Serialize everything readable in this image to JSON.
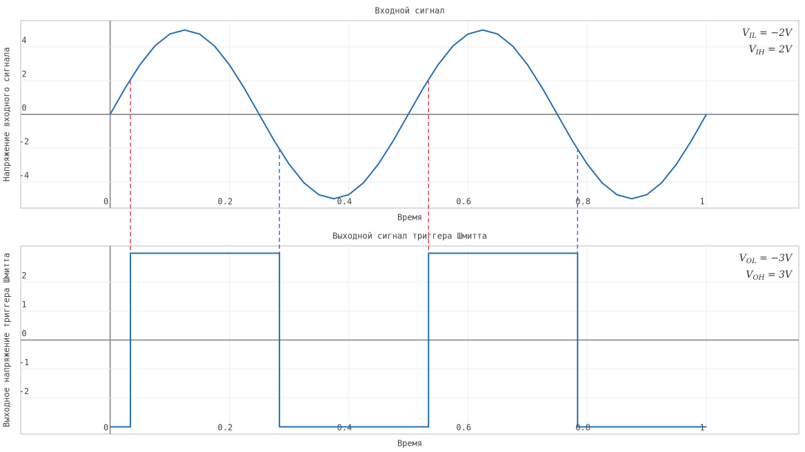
{
  "chart_data": [
    {
      "type": "line",
      "title": "Входной сигнал",
      "xlabel": "Время",
      "ylabel": "Напряжение входного сигнала",
      "x": [
        0,
        0.025,
        0.05,
        0.075,
        0.1,
        0.125,
        0.15,
        0.175,
        0.2,
        0.225,
        0.25,
        0.275,
        0.3,
        0.325,
        0.35,
        0.375,
        0.4,
        0.425,
        0.45,
        0.475,
        0.5,
        0.525,
        0.55,
        0.575,
        0.6,
        0.625,
        0.65,
        0.675,
        0.7,
        0.725,
        0.75,
        0.775,
        0.8,
        0.825,
        0.85,
        0.875,
        0.9,
        0.925,
        0.95,
        0.975,
        1
      ],
      "series": [
        {
          "color": "#1f6fb4",
          "values": [
            0,
            1.55,
            2.94,
            4.05,
            4.76,
            5,
            4.76,
            4.05,
            2.94,
            1.55,
            0,
            -1.55,
            -2.94,
            -4.05,
            -4.76,
            -5,
            -4.76,
            -4.05,
            -2.94,
            -1.55,
            0,
            1.55,
            2.94,
            4.05,
            4.76,
            5,
            4.76,
            4.05,
            2.94,
            1.55,
            0,
            -1.55,
            -2.94,
            -4.05,
            -4.76,
            -5,
            -4.76,
            -4.05,
            -2.94,
            -1.55,
            0
          ]
        }
      ],
      "xlim": [
        -0.15,
        1.155
      ],
      "ylim": [
        -5.55,
        5.55
      ],
      "xticks": [
        0,
        0.2,
        0.4,
        0.6,
        0.8,
        1
      ],
      "yticks": [
        -4,
        -2,
        0,
        2,
        4
      ],
      "grid": true,
      "vlines": [
        {
          "x": 0.034,
          "y": 2,
          "y2": 3,
          "color": "#ef4444"
        },
        {
          "x": 0.284,
          "y": -2,
          "y2": 3,
          "color": "#5b5bd6"
        },
        {
          "x": 0.534,
          "y": 2,
          "y2": 3,
          "color": "#ef4444"
        },
        {
          "x": 0.784,
          "y": -2,
          "y2": 3,
          "color": "#5b5bd6"
        }
      ],
      "annotations": [
        [
          {
            "text": "V"
          },
          {
            "text": "IL",
            "sub": true
          },
          {
            "text": " = −2V"
          }
        ],
        [
          {
            "text": "V"
          },
          {
            "text": "IH",
            "sub": true
          },
          {
            "text": " = 2V"
          }
        ]
      ]
    },
    {
      "type": "step",
      "title": "Выходной сигнал триггера Шмитта",
      "xlabel": "Время",
      "ylabel": "Выходное напряжение триггера Шмитта",
      "x": [
        0,
        0.034,
        0.034,
        0.284,
        0.284,
        0.534,
        0.534,
        0.784,
        0.784,
        1
      ],
      "series": [
        {
          "color": "#1f6fb4",
          "values": [
            -3,
            -3,
            3,
            3,
            -3,
            -3,
            3,
            3,
            -3,
            -3
          ]
        }
      ],
      "xlim": [
        -0.15,
        1.155
      ],
      "ylim": [
        -3.25,
        3.25
      ],
      "xticks": [
        0,
        0.2,
        0.4,
        0.6,
        0.8,
        1
      ],
      "yticks": [
        -2,
        -1,
        0,
        1,
        2
      ],
      "grid": true,
      "annotations": [
        [
          {
            "text": "V"
          },
          {
            "text": "OL",
            "sub": true
          },
          {
            "text": " = −3V"
          }
        ],
        [
          {
            "text": "V"
          },
          {
            "text": "OH",
            "sub": true
          },
          {
            "text": " = 3V"
          }
        ]
      ]
    }
  ]
}
